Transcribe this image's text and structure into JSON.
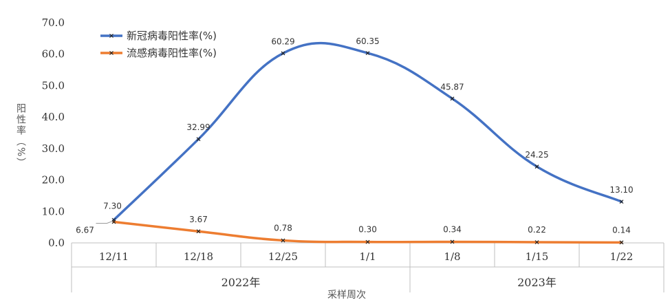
{
  "chart_data": {
    "type": "line",
    "categories": [
      "12/11",
      "12/18",
      "12/25",
      "1/1",
      "1/8",
      "1/15",
      "1/22"
    ],
    "category_groups": [
      {
        "label": "2022年",
        "span": [
          0,
          3
        ]
      },
      {
        "label": "2023年",
        "span": [
          4,
          6
        ]
      }
    ],
    "series": [
      {
        "name": "新冠病毒阳性率(%)",
        "color": "#4472C4",
        "values": [
          7.3,
          32.99,
          60.29,
          60.35,
          45.87,
          24.25,
          13.1
        ],
        "labels": [
          "7.30",
          "32.99",
          "60.29",
          "60.35",
          "45.87",
          "24.25",
          "13.10"
        ],
        "smooth": true
      },
      {
        "name": "流感病毒阳性率(%)",
        "color": "#ED7D31",
        "values": [
          6.67,
          3.67,
          0.78,
          0.3,
          0.34,
          0.22,
          0.14
        ],
        "labels": [
          "6.67",
          "3.67",
          "0.78",
          "0.30",
          "0.34",
          "0.22",
          "0.14"
        ],
        "smooth": true
      }
    ],
    "ylabel": "阳性率（%）",
    "xlabel": "采样周次",
    "ylim": [
      0,
      70
    ],
    "yticks": [
      "0.0",
      "10.0",
      "20.0",
      "30.0",
      "40.0",
      "50.0",
      "60.0",
      "70.0"
    ],
    "legend_position": "top-left",
    "marker": "x"
  }
}
